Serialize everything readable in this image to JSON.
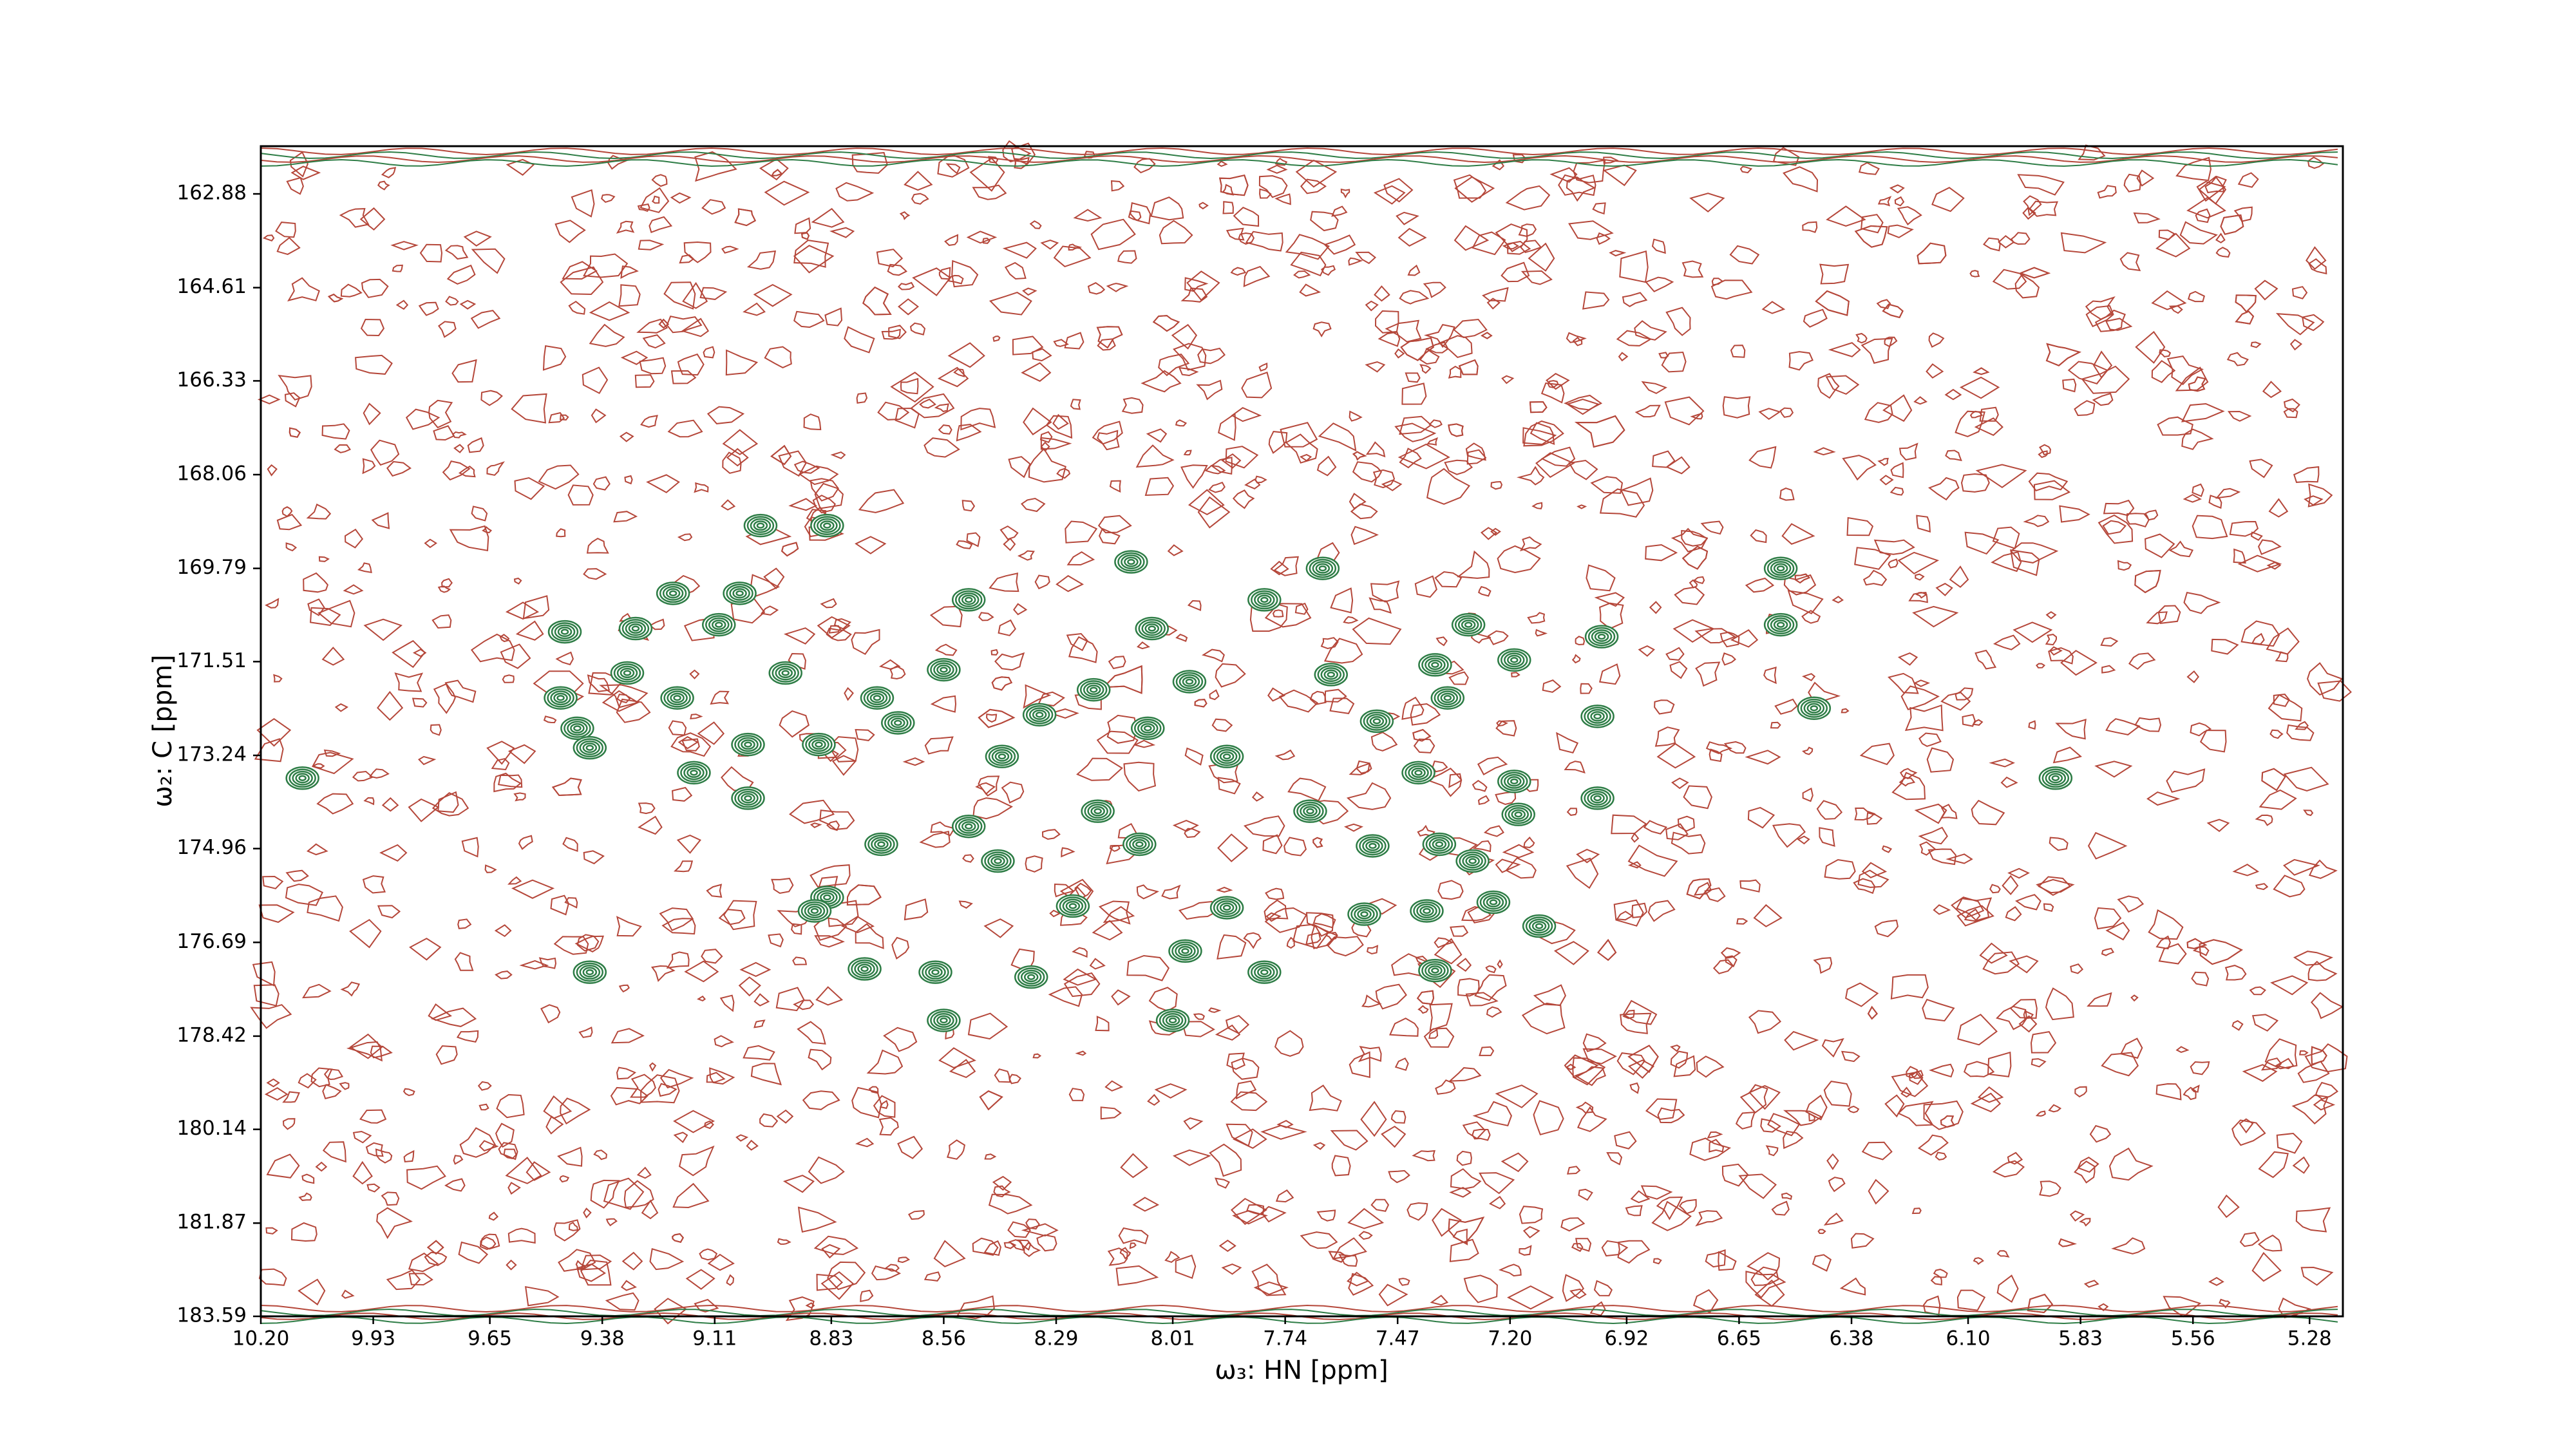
{
  "chart_data": {
    "type": "contour",
    "x_label": "ω₃: HN [ppm]",
    "y_label": "ω₂: C [ppm]",
    "xlim": [
      10.2,
      5.2
    ],
    "ylim": [
      183.59,
      162.0
    ],
    "xticks": [
      {
        "value": 10.2,
        "label": "10.20"
      },
      9.93,
      9.65,
      9.38,
      9.11,
      8.83,
      8.56,
      8.29,
      8.01,
      7.74,
      7.47,
      {
        "value": 7.2,
        "label": "7.20"
      },
      6.92,
      6.65,
      6.38,
      {
        "value": 6.1,
        "label": "6.10"
      },
      5.83,
      5.56,
      5.28
    ],
    "yticks": [
      162.88,
      164.61,
      166.33,
      168.06,
      169.79,
      171.51,
      173.24,
      174.96,
      176.69,
      178.42,
      180.14,
      181.87,
      183.59
    ],
    "color": "#2e7d46",
    "noise_color": "#b5473a",
    "x": [
      10.1,
      9.47,
      9.3,
      9.21,
      9.1,
      9.05,
      9.0,
      8.84,
      8.5,
      8.11,
      8.06,
      7.79,
      7.65,
      7.3,
      7.19,
      6.98,
      6.55,
      6.55,
      6.47,
      5.89,
      6.99,
      6.99,
      9.48,
      9.44,
      9.41,
      9.32,
      9.2,
      9.16,
      9.03,
      9.03,
      8.94,
      8.86,
      8.72,
      8.67,
      8.56,
      8.71,
      8.84,
      8.87,
      8.75,
      8.58,
      8.56,
      8.5,
      8.43,
      8.25,
      8.35,
      8.19,
      8.09,
      8.01,
      7.98,
      7.88,
      7.88,
      7.97,
      8.07,
      7.63,
      7.52,
      7.42,
      7.68,
      7.53,
      7.37,
      7.29,
      7.19,
      7.18,
      7.4,
      7.55,
      7.38,
      7.24,
      7.13,
      9.41,
      8.42,
      8.33,
      8.2,
      7.35,
      7.38,
      7.79
    ],
    "values": [
      173.66,
      170.96,
      170.9,
      170.25,
      170.83,
      170.25,
      169.0,
      169.0,
      170.37,
      169.67,
      170.9,
      170.37,
      169.79,
      170.83,
      171.48,
      171.05,
      170.83,
      169.79,
      172.37,
      173.66,
      172.52,
      174.03,
      172.18,
      172.74,
      173.1,
      171.72,
      172.18,
      173.56,
      173.04,
      174.03,
      171.72,
      173.04,
      172.18,
      172.64,
      171.66,
      174.88,
      175.86,
      176.11,
      177.18,
      177.24,
      178.13,
      174.55,
      175.19,
      176.02,
      177.33,
      174.27,
      174.88,
      178.13,
      176.85,
      176.05,
      173.26,
      171.88,
      172.74,
      171.75,
      172.61,
      173.56,
      174.27,
      174.91,
      174.88,
      175.19,
      173.72,
      174.33,
      176.11,
      176.17,
      177.21,
      175.95,
      176.39,
      177.24,
      173.26,
      172.49,
      172.03,
      172.18,
      171.57,
      177.24
    ]
  }
}
